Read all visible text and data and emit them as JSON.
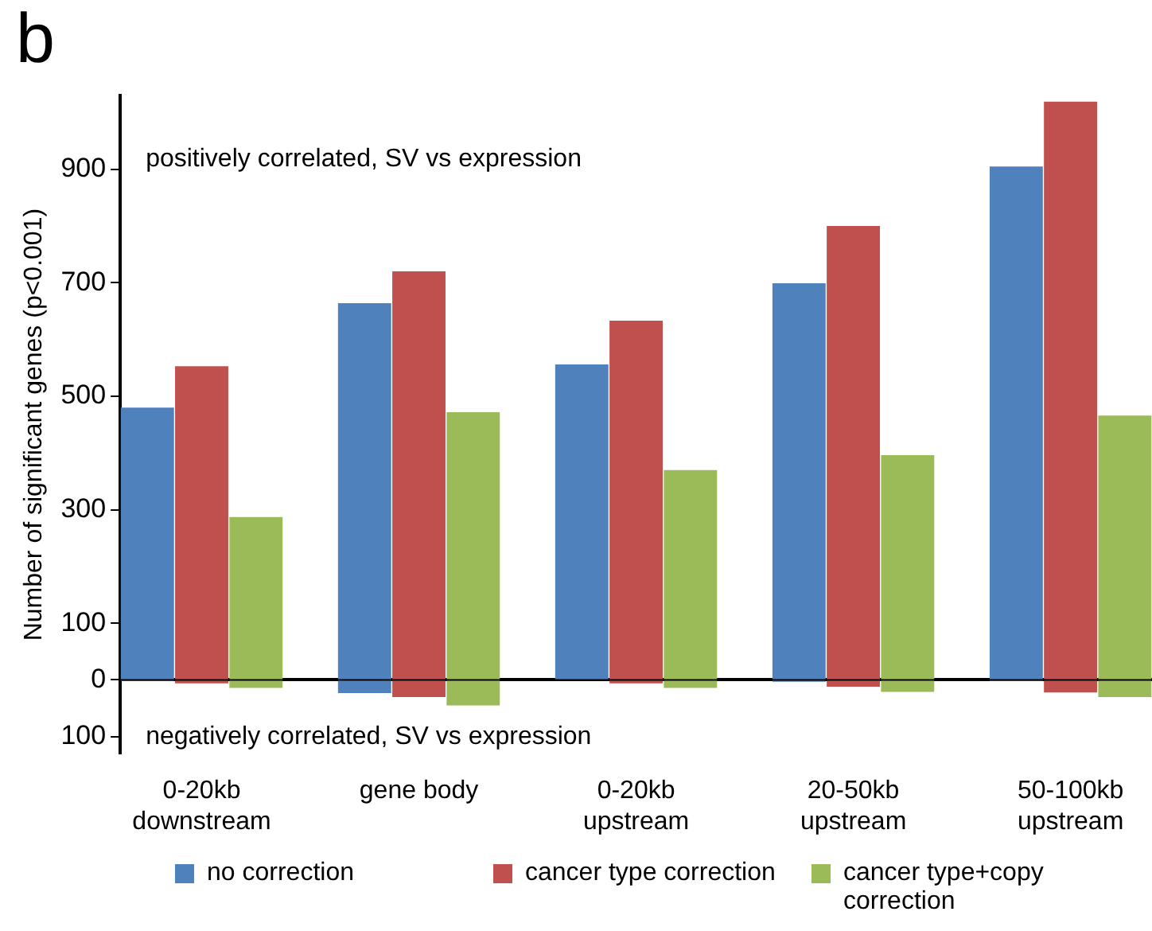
{
  "chart_data": {
    "type": "bar",
    "title": "b",
    "ylabel": "Number of significant genes (p<0.001)",
    "categories": [
      null,
      "0-20kb\ndownstream",
      null,
      null,
      null,
      "gene body",
      null,
      null,
      null,
      "0-20kb\nupstream",
      null,
      null,
      null,
      "20-50kb\nupstream",
      null,
      null,
      null,
      "50-100kb\nupstream",
      null
    ],
    "series": [
      {
        "name": "no correction",
        "color": "#4f81bd",
        "values": [
          480,
          null,
          null,
          null,
          664,
          null,
          null,
          null,
          556,
          null,
          null,
          null,
          699,
          null,
          null,
          null,
          905,
          null,
          null
        ]
      },
      {
        "name": "cancer type correction",
        "color": "#c0504d",
        "values": [
          null,
          553,
          null,
          null,
          null,
          720,
          null,
          null,
          null,
          633,
          null,
          null,
          null,
          800,
          null,
          null,
          null,
          1019,
          null
        ]
      },
      {
        "name": "cancer type+copy correction",
        "color": "#9bbb59",
        "values": [
          null,
          null,
          287,
          null,
          null,
          null,
          472,
          null,
          null,
          null,
          370,
          null,
          null,
          null,
          396,
          null,
          null,
          null,
          466
        ]
      },
      {
        "color": "#4f81bd",
        "values": [
          -2,
          null,
          null,
          null,
          -23,
          null,
          null,
          null,
          null,
          null,
          null,
          null,
          -3,
          null,
          null,
          null,
          -2,
          null,
          null
        ]
      },
      {
        "color": "#c0504d",
        "values": [
          null,
          -6,
          null,
          null,
          null,
          -30,
          null,
          null,
          null,
          -6,
          null,
          null,
          null,
          -12,
          null,
          null,
          null,
          -22,
          null
        ]
      },
      {
        "color": "#9bbb59",
        "values": [
          null,
          null,
          -14,
          null,
          null,
          null,
          -45,
          null,
          null,
          null,
          -14,
          null,
          null,
          null,
          -21,
          null,
          null,
          null,
          -30
        ]
      }
    ],
    "stacked": true,
    "ylim": [
      -130,
      1030
    ],
    "yticks": [
      {
        "value": -100,
        "label": "100"
      },
      0,
      100,
      300,
      500,
      700,
      900
    ],
    "annotations": [
      "positively correlated, SV vs expression",
      "negatively correlated, SV vs expression"
    ],
    "legend": "bottom"
  }
}
